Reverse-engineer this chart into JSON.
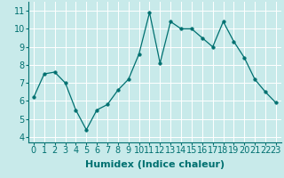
{
  "x": [
    0,
    1,
    2,
    3,
    4,
    5,
    6,
    7,
    8,
    9,
    10,
    11,
    12,
    13,
    14,
    15,
    16,
    17,
    18,
    19,
    20,
    21,
    22,
    23
  ],
  "y": [
    6.2,
    7.5,
    7.6,
    7.0,
    5.5,
    4.4,
    5.5,
    5.8,
    6.6,
    7.2,
    8.6,
    10.9,
    8.1,
    10.4,
    10.0,
    10.0,
    9.5,
    9.0,
    10.4,
    9.3,
    8.4,
    7.2,
    6.5,
    5.9
  ],
  "xlabel": "Humidex (Indice chaleur)",
  "ylim": [
    3.7,
    11.5
  ],
  "xlim": [
    -0.5,
    23.5
  ],
  "yticks": [
    4,
    5,
    6,
    7,
    8,
    9,
    10,
    11
  ],
  "xticks": [
    0,
    1,
    2,
    3,
    4,
    5,
    6,
    7,
    8,
    9,
    10,
    11,
    12,
    13,
    14,
    15,
    16,
    17,
    18,
    19,
    20,
    21,
    22,
    23
  ],
  "line_color": "#007070",
  "marker": "o",
  "marker_size": 2.5,
  "bg_color": "#c8eaea",
  "grid_color": "#ffffff",
  "xlabel_fontsize": 8,
  "tick_fontsize": 7,
  "bottom_bar_color": "#3a7070"
}
